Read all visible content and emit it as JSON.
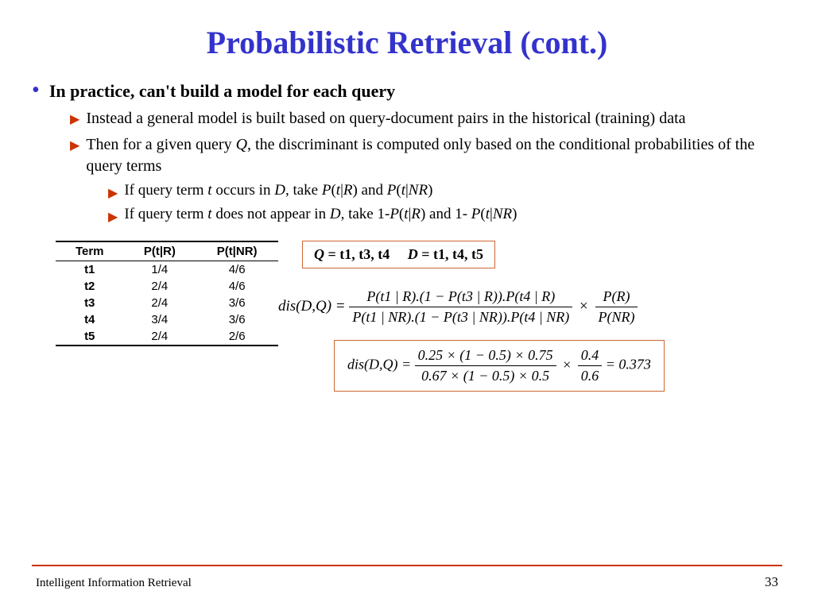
{
  "title": "Probabilistic Retrieval (cont.)",
  "bullets": {
    "l1": "In practice, can't build a model for each query",
    "l2a": "Instead a general model is built based on query-document pairs in the historical (training) data",
    "l2b_pre": "Then for a given query ",
    "l2b_q": "Q",
    "l2b_post": ", the discriminant is computed only based on the conditional probabilities of the query terms",
    "l3a": "If query term t occurs in D, take P(t|R) and P(t|NR)",
    "l3b": "If query term t does not appear in D, take 1-P(t|R) and 1- P(t|NR)"
  },
  "table": {
    "headers": [
      "Term",
      "P(t|R)",
      "P(t|NR)"
    ],
    "rows": [
      [
        "t1",
        "1/4",
        "4/6"
      ],
      [
        "t2",
        "2/4",
        "4/6"
      ],
      [
        "t3",
        "2/4",
        "3/6"
      ],
      [
        "t4",
        "3/4",
        "3/6"
      ],
      [
        "t5",
        "2/4",
        "2/6"
      ]
    ]
  },
  "qd_box": {
    "q_label": "Q",
    "q_val": " = t1, t3, t4",
    "d_label": "D",
    "d_val": " = t1, t4, t5"
  },
  "formula1": {
    "lhs": "dis(D,Q) = ",
    "num": "P(t1 | R).(1 − P(t3 | R)).P(t4 | R)",
    "den": "P(t1 | NR).(1 − P(t3 | NR)).P(t4 | NR)",
    "num2": "P(R)",
    "den2": "P(NR)"
  },
  "formula2": {
    "lhs": "dis(D,Q) = ",
    "num": "0.25 × (1 − 0.5) × 0.75",
    "den": "0.67 × (1 − 0.5) × 0.5",
    "num2": "0.4",
    "den2": "0.6",
    "result": " = 0.373"
  },
  "footer": {
    "left": "Intelligent Information Retrieval",
    "page": "33"
  },
  "colors": {
    "title": "#3333cc",
    "bullet_dot": "#3333cc",
    "triangle": "#cc3300",
    "box_border": "#cc6633",
    "hr": "#cc3300"
  }
}
